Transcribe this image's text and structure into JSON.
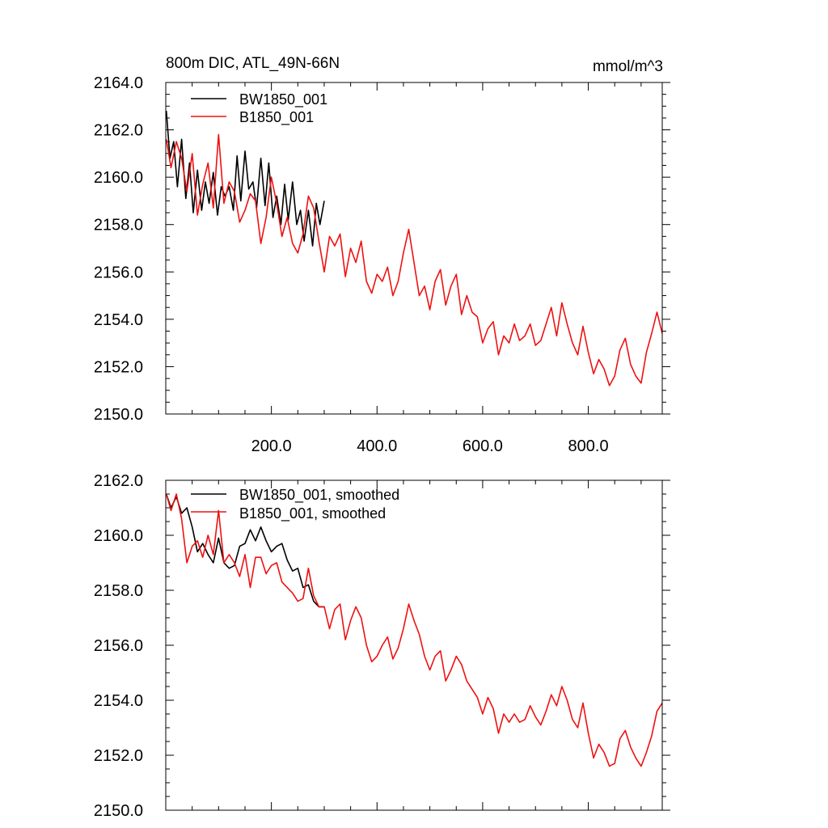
{
  "chart_data": [
    {
      "type": "line",
      "title": "800m DIC, ATL_49N-66N",
      "units": "mmol/m^3",
      "xlim": [
        0,
        940
      ],
      "ylim": [
        2150,
        2164
      ],
      "y_ticks": [
        2150,
        2152,
        2154,
        2156,
        2158,
        2160,
        2162,
        2164
      ],
      "y_tick_labels": [
        "2150.0",
        "2152.0",
        "2154.0",
        "2156.0",
        "2158.0",
        "2160.0",
        "2162.0",
        "2164.0"
      ],
      "x_ticks": [
        200,
        400,
        600,
        800
      ],
      "x_tick_labels": [
        "200.0",
        "400.0",
        "600.0",
        "800.0"
      ],
      "legend_position": "top-left",
      "series": [
        {
          "name": "BW1850_001",
          "color": "#000000",
          "x": [
            1,
            8,
            15,
            22,
            30,
            38,
            45,
            52,
            60,
            68,
            75,
            82,
            90,
            98,
            105,
            112,
            120,
            128,
            135,
            142,
            150,
            157,
            165,
            172,
            180,
            188,
            195,
            203,
            210,
            218,
            225,
            232,
            240,
            248,
            255,
            262,
            270,
            278,
            285,
            292,
            300
          ],
          "values": [
            2162.8,
            2160.8,
            2161.5,
            2159.6,
            2161.6,
            2159.1,
            2160.6,
            2158.5,
            2160.3,
            2158.6,
            2159.8,
            2158.9,
            2160.2,
            2158.4,
            2159.6,
            2159.2,
            2159.6,
            2158.6,
            2160.9,
            2159.0,
            2161.1,
            2159.5,
            2159.8,
            2158.7,
            2160.8,
            2158.8,
            2160.6,
            2158.3,
            2159.2,
            2158.0,
            2159.7,
            2158.2,
            2159.8,
            2158.0,
            2158.6,
            2157.3,
            2158.6,
            2157.1,
            2158.9,
            2158.0,
            2159.0
          ]
        },
        {
          "name": "B1850_001",
          "color": "#ee1111",
          "x": [
            1,
            10,
            20,
            30,
            40,
            50,
            60,
            70,
            80,
            90,
            100,
            110,
            120,
            130,
            140,
            150,
            160,
            170,
            180,
            190,
            200,
            210,
            220,
            230,
            240,
            250,
            260,
            270,
            280,
            290,
            300,
            310,
            320,
            330,
            340,
            350,
            360,
            370,
            380,
            390,
            400,
            410,
            420,
            430,
            440,
            450,
            460,
            470,
            480,
            490,
            500,
            510,
            520,
            530,
            540,
            550,
            560,
            570,
            580,
            590,
            600,
            610,
            620,
            630,
            640,
            650,
            660,
            670,
            680,
            690,
            700,
            710,
            720,
            730,
            740,
            750,
            760,
            770,
            780,
            790,
            800,
            810,
            820,
            830,
            840,
            850,
            860,
            870,
            880,
            890,
            900,
            910,
            920,
            930,
            940
          ],
          "values": [
            2161.6,
            2160.4,
            2161.5,
            2160.8,
            2159.4,
            2161.0,
            2158.4,
            2159.7,
            2160.6,
            2158.7,
            2161.8,
            2158.9,
            2159.8,
            2159.4,
            2158.1,
            2158.6,
            2159.3,
            2159.0,
            2157.2,
            2158.3,
            2160.0,
            2158.9,
            2157.5,
            2158.3,
            2157.2,
            2156.8,
            2157.6,
            2159.2,
            2158.7,
            2157.3,
            2156.0,
            2157.5,
            2157.1,
            2157.6,
            2155.8,
            2157.0,
            2156.4,
            2157.3,
            2155.6,
            2155.1,
            2155.9,
            2155.6,
            2156.2,
            2155.0,
            2155.6,
            2156.8,
            2157.8,
            2156.4,
            2155.0,
            2155.4,
            2154.4,
            2155.6,
            2156.1,
            2154.6,
            2155.4,
            2155.9,
            2154.2,
            2155.0,
            2154.3,
            2154.1,
            2153.0,
            2153.6,
            2153.9,
            2152.5,
            2153.3,
            2153.0,
            2153.8,
            2153.1,
            2153.3,
            2153.8,
            2152.9,
            2153.1,
            2153.8,
            2154.5,
            2153.3,
            2154.7,
            2153.8,
            2153.0,
            2152.5,
            2153.7,
            2152.6,
            2151.7,
            2152.3,
            2151.9,
            2151.2,
            2151.6,
            2152.7,
            2153.2,
            2152.1,
            2151.6,
            2151.3,
            2152.6,
            2153.4,
            2154.3,
            2153.4
          ]
        }
      ]
    },
    {
      "type": "line",
      "title": "",
      "xlim": [
        0,
        940
      ],
      "ylim": [
        2150,
        2162
      ],
      "y_ticks": [
        2150,
        2152,
        2154,
        2156,
        2158,
        2160,
        2162
      ],
      "y_tick_labels": [
        "2150.0",
        "2152.0",
        "2154.0",
        "2156.0",
        "2158.0",
        "2160.0",
        "2162.0"
      ],
      "x_ticks": [
        200,
        400,
        600,
        800
      ],
      "legend_position": "top-left",
      "series": [
        {
          "name": "BW1850_001, smoothed",
          "color": "#000000",
          "x": [
            1,
            10,
            20,
            30,
            40,
            50,
            60,
            70,
            80,
            90,
            100,
            110,
            120,
            130,
            140,
            150,
            160,
            170,
            180,
            190,
            200,
            210,
            220,
            230,
            240,
            250,
            260,
            270,
            280,
            290,
            300
          ],
          "values": [
            2161.5,
            2161.0,
            2161.4,
            2160.8,
            2161.0,
            2160.3,
            2159.4,
            2159.7,
            2159.3,
            2159.0,
            2159.9,
            2159.0,
            2158.8,
            2158.9,
            2159.6,
            2159.7,
            2160.2,
            2159.8,
            2160.3,
            2159.8,
            2159.4,
            2159.6,
            2159.7,
            2159.1,
            2158.7,
            2158.8,
            2158.1,
            2158.2,
            2157.6,
            2157.4,
            2157.4
          ]
        },
        {
          "name": "B1850_001, smoothed",
          "color": "#ee1111",
          "x": [
            1,
            10,
            20,
            30,
            40,
            50,
            60,
            70,
            80,
            90,
            100,
            110,
            120,
            130,
            140,
            150,
            160,
            170,
            180,
            190,
            200,
            210,
            220,
            230,
            240,
            250,
            260,
            270,
            280,
            290,
            300,
            310,
            320,
            330,
            340,
            350,
            360,
            370,
            380,
            390,
            400,
            410,
            420,
            430,
            440,
            450,
            460,
            470,
            480,
            490,
            500,
            510,
            520,
            530,
            540,
            550,
            560,
            570,
            580,
            590,
            600,
            610,
            620,
            630,
            640,
            650,
            660,
            670,
            680,
            690,
            700,
            710,
            720,
            730,
            740,
            750,
            760,
            770,
            780,
            790,
            800,
            810,
            820,
            830,
            840,
            850,
            860,
            870,
            880,
            890,
            900,
            910,
            920,
            930,
            940
          ],
          "values": [
            2161.5,
            2160.9,
            2161.5,
            2160.6,
            2159.0,
            2159.6,
            2159.8,
            2159.2,
            2160.0,
            2159.3,
            2160.9,
            2159.0,
            2159.3,
            2159.0,
            2158.5,
            2159.3,
            2158.1,
            2159.2,
            2159.2,
            2158.6,
            2158.9,
            2159.0,
            2158.3,
            2158.1,
            2157.9,
            2157.6,
            2157.7,
            2158.8,
            2157.8,
            2157.4,
            2157.4,
            2156.6,
            2157.3,
            2157.5,
            2156.2,
            2156.9,
            2157.4,
            2157.0,
            2156.0,
            2155.4,
            2155.6,
            2156.0,
            2156.3,
            2155.5,
            2155.9,
            2156.6,
            2157.5,
            2156.9,
            2156.4,
            2155.6,
            2155.1,
            2155.6,
            2155.8,
            2154.7,
            2155.1,
            2155.6,
            2155.3,
            2154.7,
            2154.4,
            2154.1,
            2153.5,
            2154.1,
            2153.7,
            2152.8,
            2153.5,
            2153.2,
            2153.5,
            2153.2,
            2153.3,
            2153.8,
            2153.4,
            2153.1,
            2153.6,
            2154.2,
            2153.8,
            2154.5,
            2154.0,
            2153.3,
            2153.0,
            2153.9,
            2152.8,
            2151.9,
            2152.4,
            2152.1,
            2151.6,
            2151.7,
            2152.6,
            2152.9,
            2152.3,
            2151.9,
            2151.6,
            2152.1,
            2152.7,
            2153.6,
            2153.9
          ]
        }
      ]
    }
  ]
}
